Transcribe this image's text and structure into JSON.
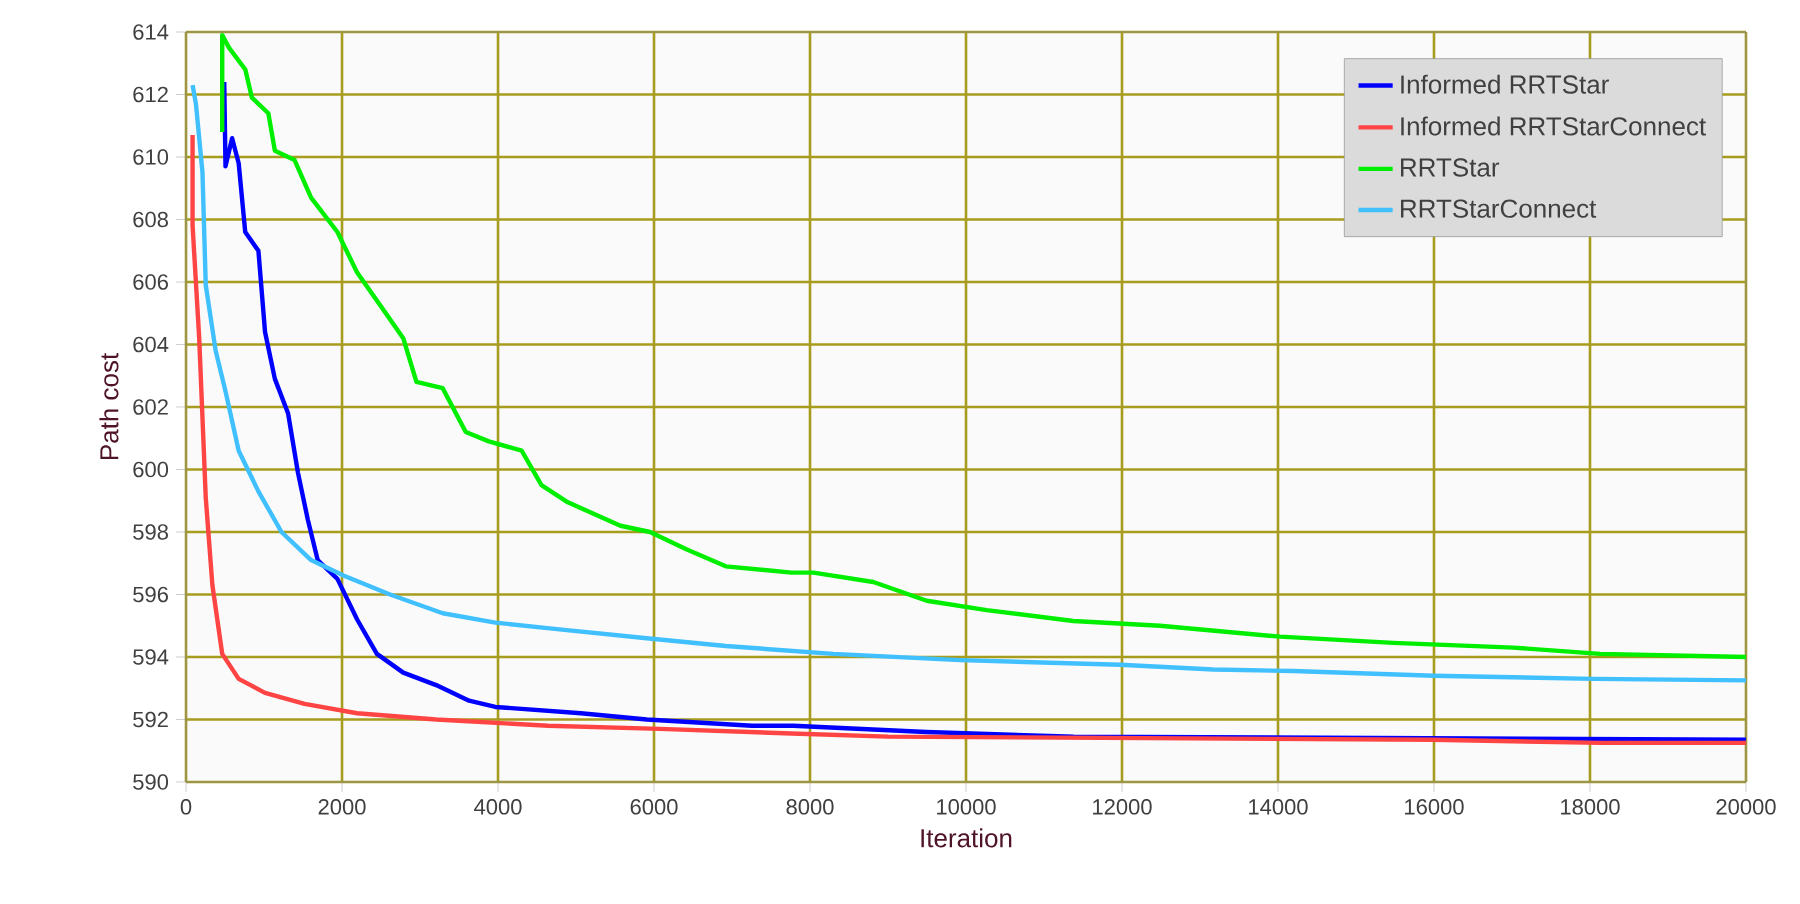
{
  "chart_data": {
    "type": "line",
    "xlabel": "Iteration",
    "ylabel": "Path cost",
    "xlim": [
      0,
      20000
    ],
    "ylim": [
      590,
      614
    ],
    "xticks": [
      0,
      2000,
      4000,
      6000,
      8000,
      10000,
      12000,
      14000,
      16000,
      18000,
      20000
    ],
    "yticks": [
      590,
      592,
      594,
      596,
      598,
      600,
      602,
      604,
      606,
      608,
      610,
      612,
      614
    ],
    "grid": true,
    "legend": "top right",
    "series": [
      {
        "name": "Informed RRTStar",
        "color": "#0000ff",
        "x": [
          490,
          506,
          591,
          675,
          759,
          928,
          1013,
          1139,
          1308,
          1435,
          1561,
          1688,
          1941,
          2194,
          2447,
          2785,
          3207,
          3629,
          3966,
          5063,
          5907,
          7257,
          7787,
          9490,
          11380,
          15900,
          20000
        ],
        "values": [
          612.4,
          609.7,
          610.6,
          609.8,
          607.6,
          607.0,
          604.4,
          602.9,
          601.8,
          599.9,
          598.4,
          597.1,
          596.5,
          595.2,
          594.1,
          593.5,
          593.1,
          592.6,
          592.4,
          592.2,
          592.0,
          591.8,
          591.8,
          591.6,
          591.45,
          591.4,
          591.35
        ]
      },
      {
        "name": "Informed RRTStarConnect",
        "color": "#ff4444",
        "x": [
          84,
          84,
          169,
          253,
          338,
          464,
          675,
          1013,
          1519,
          2194,
          3207,
          4641,
          6076,
          7764,
          9000,
          15983,
          18128,
          20000
        ],
        "values": [
          610.7,
          607.8,
          604.2,
          599.1,
          596.3,
          594.1,
          593.3,
          592.85,
          592.5,
          592.2,
          592.0,
          591.8,
          591.7,
          591.55,
          591.45,
          591.35,
          591.25,
          591.25
        ]
      },
      {
        "name": "RRTStar",
        "color": "#00ee00",
        "x": [
          464,
          464,
          550,
          760,
          844,
          1055,
          1139,
          1392,
          1603,
          1941,
          2194,
          2532,
          2785,
          2954,
          3291,
          3586,
          3882,
          4304,
          4557,
          4895,
          5570,
          5949,
          6414,
          6920,
          7764,
          8043,
          8812,
          9496,
          10264,
          11376,
          12487,
          14026,
          15479,
          17017,
          18128,
          20000
        ],
        "values": [
          610.8,
          613.9,
          613.5,
          612.8,
          611.9,
          611.4,
          610.2,
          609.9,
          608.7,
          607.6,
          606.3,
          605.1,
          604.2,
          602.8,
          602.6,
          601.2,
          600.9,
          600.6,
          599.5,
          598.95,
          598.2,
          598.0,
          597.45,
          596.9,
          596.7,
          596.7,
          596.4,
          595.8,
          595.5,
          595.15,
          595.0,
          594.65,
          594.45,
          594.3,
          594.1,
          594.0
        ]
      },
      {
        "name": "RRTStarConnect",
        "color": "#40c0ff",
        "x": [
          84,
          127,
          211,
          253,
          380,
          506,
          675,
          928,
          1224,
          1603,
          2025,
          2616,
          3291,
          3966,
          4726,
          5907,
          6920,
          8299,
          9923,
          11974,
          13172,
          14197,
          15991,
          18043,
          20000
        ],
        "values": [
          612.3,
          611.7,
          609.5,
          605.9,
          603.8,
          602.5,
          600.6,
          599.3,
          598.0,
          597.1,
          596.6,
          596.0,
          595.4,
          595.1,
          594.9,
          594.6,
          594.35,
          594.1,
          593.9,
          593.75,
          593.6,
          593.55,
          593.4,
          593.3,
          593.25
        ]
      }
    ]
  }
}
